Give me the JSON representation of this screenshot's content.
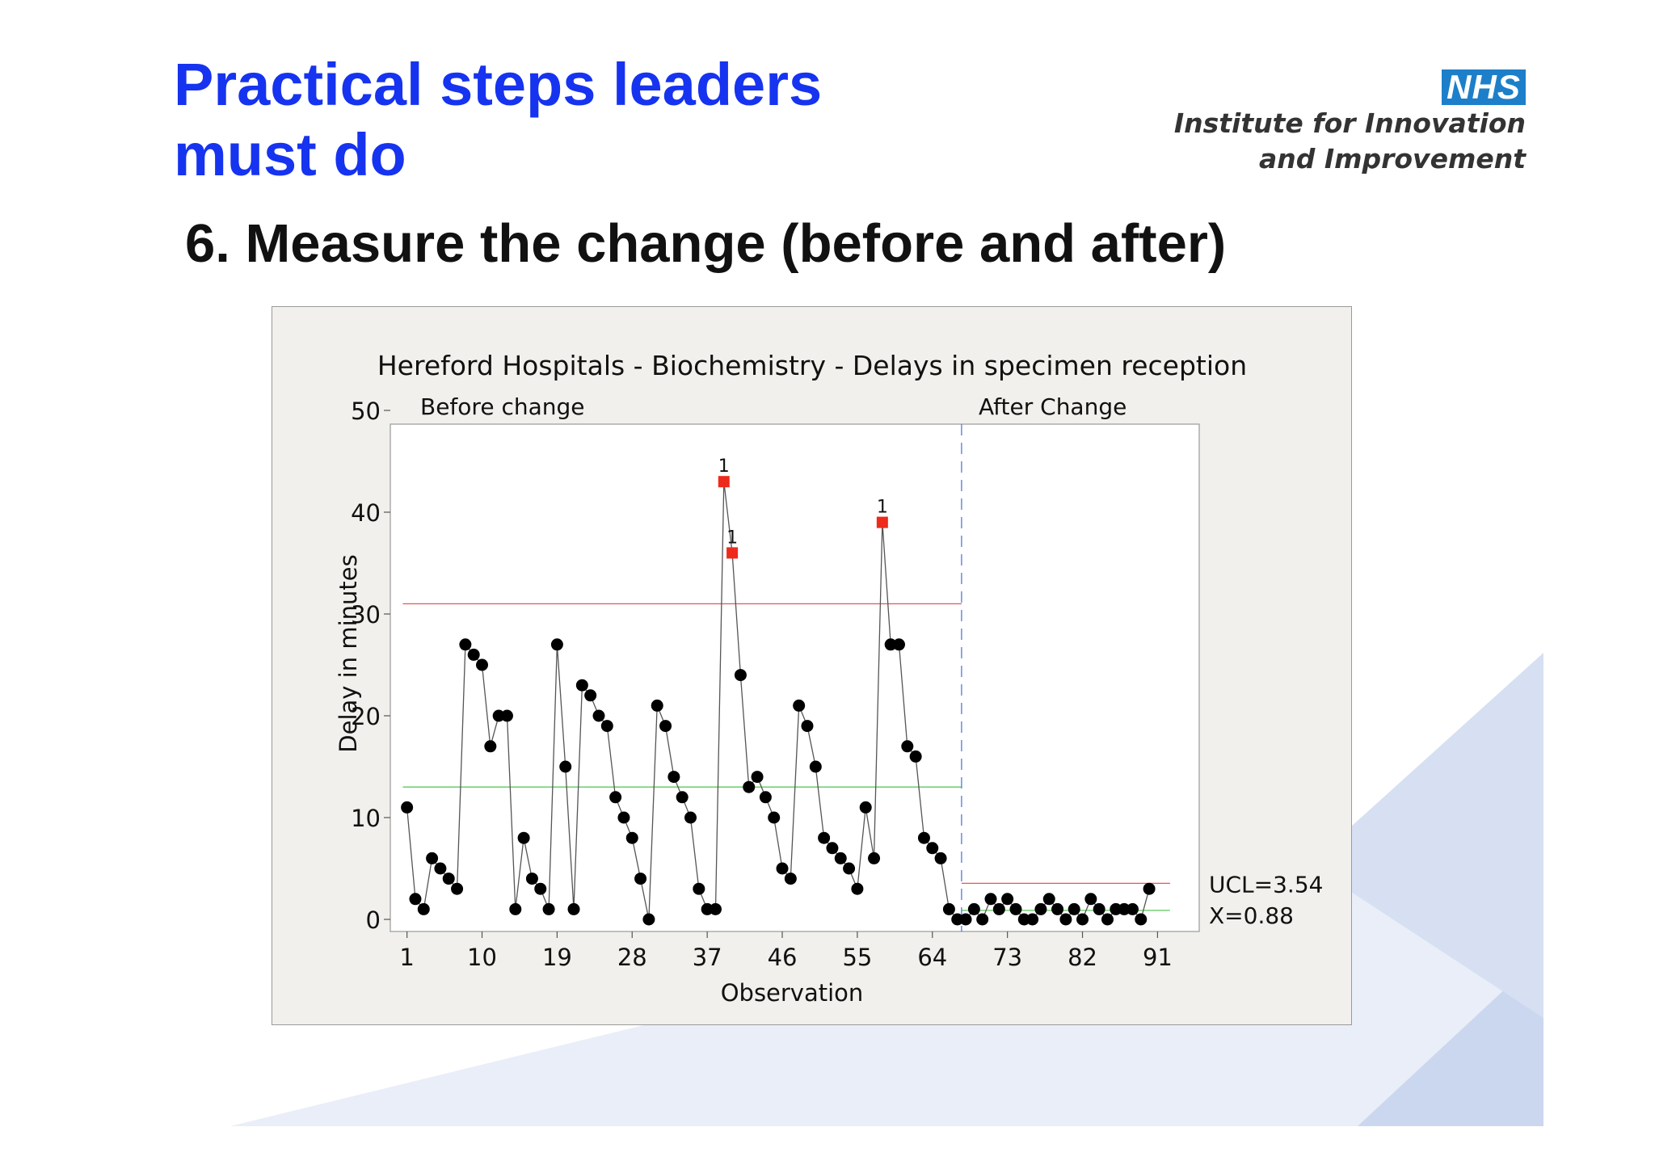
{
  "slide": {
    "title_line1": "Practical steps leaders",
    "title_line2": "must do",
    "subtitle": "6. Measure the change (before and after)",
    "logo_text": "NHS",
    "org_line1": "Institute for Innovation",
    "org_line2": "and Improvement"
  },
  "colors": {
    "title": "#1633f0",
    "logo_bg": "#1d7fc9",
    "panel_bg": "#f1f0ec",
    "ucl_line": "#e05858",
    "center_line": "#5cc95c",
    "phase_divider": "#5577dd",
    "out_of_control": "#ee2a1b",
    "point": "#000000"
  },
  "chart_data": {
    "type": "scatter",
    "title": "Hereford Hospitals - Biochemistry - Delays in specimen reception",
    "xlabel": "Observation",
    "ylabel": "Delay in minutes",
    "xlim": [
      -1,
      96
    ],
    "ylim": [
      0,
      50
    ],
    "xticks": [
      1,
      10,
      19,
      28,
      37,
      46,
      55,
      64,
      73,
      82,
      91
    ],
    "yticks": [
      0,
      10,
      20,
      30,
      40,
      50
    ],
    "grid": false,
    "phases": [
      {
        "label": "Before change",
        "start": 1,
        "end": 67,
        "ucl": 31,
        "center": 13
      },
      {
        "label": "After Change",
        "start": 68,
        "end": 92,
        "ucl": 3.54,
        "center": 0.88
      }
    ],
    "phase_divider_x": 67.5,
    "limit_labels": [
      "UCL=3.54",
      "X=0.88"
    ],
    "flag_label": "1",
    "series": [
      {
        "values": [
          11,
          2,
          1,
          6,
          5,
          4,
          3,
          27,
          26,
          25,
          17,
          20,
          20,
          1,
          8,
          4,
          3,
          1,
          27,
          15,
          1,
          23,
          22,
          20,
          19,
          12,
          10,
          8,
          4,
          0,
          21,
          19,
          14,
          12,
          10,
          3,
          1,
          1,
          43,
          36,
          24,
          13,
          14,
          12,
          10,
          5,
          4,
          21,
          19,
          15,
          8,
          7,
          6,
          5,
          3,
          11,
          6,
          39,
          27,
          27,
          17,
          16,
          8,
          7,
          6,
          1,
          0,
          0,
          1,
          0,
          2,
          1,
          2,
          1,
          0,
          0,
          1,
          2,
          1,
          0,
          1,
          0,
          2,
          1,
          0,
          1,
          1,
          1,
          0,
          3
        ],
        "flagged": [
          39,
          40,
          58
        ]
      }
    ]
  }
}
